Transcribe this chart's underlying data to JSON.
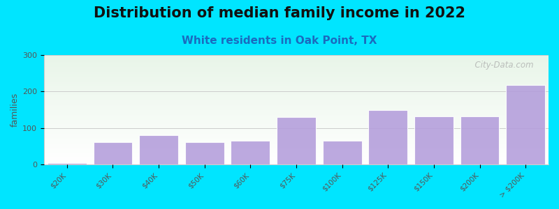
{
  "title": "Distribution of median family income in 2022",
  "subtitle": "White residents in Oak Point, TX",
  "categories": [
    "$20K",
    "$30K",
    "$40K",
    "$50K",
    "$60K",
    "$75K",
    "$100K",
    "$125K",
    "$150K",
    "$200K",
    "> $200K"
  ],
  "values": [
    5,
    62,
    80,
    62,
    65,
    130,
    65,
    150,
    133,
    133,
    218
  ],
  "bar_color": "#b39ddb",
  "bar_edge_color": "#ffffff",
  "ylabel": "families",
  "ylim": [
    0,
    300
  ],
  "yticks": [
    0,
    100,
    200,
    300
  ],
  "background_outer": "#00e5ff",
  "title_fontsize": 15,
  "subtitle_fontsize": 11,
  "subtitle_color": "#1a6bbf",
  "watermark": "  City-Data.com",
  "grid_color": "#cccccc"
}
